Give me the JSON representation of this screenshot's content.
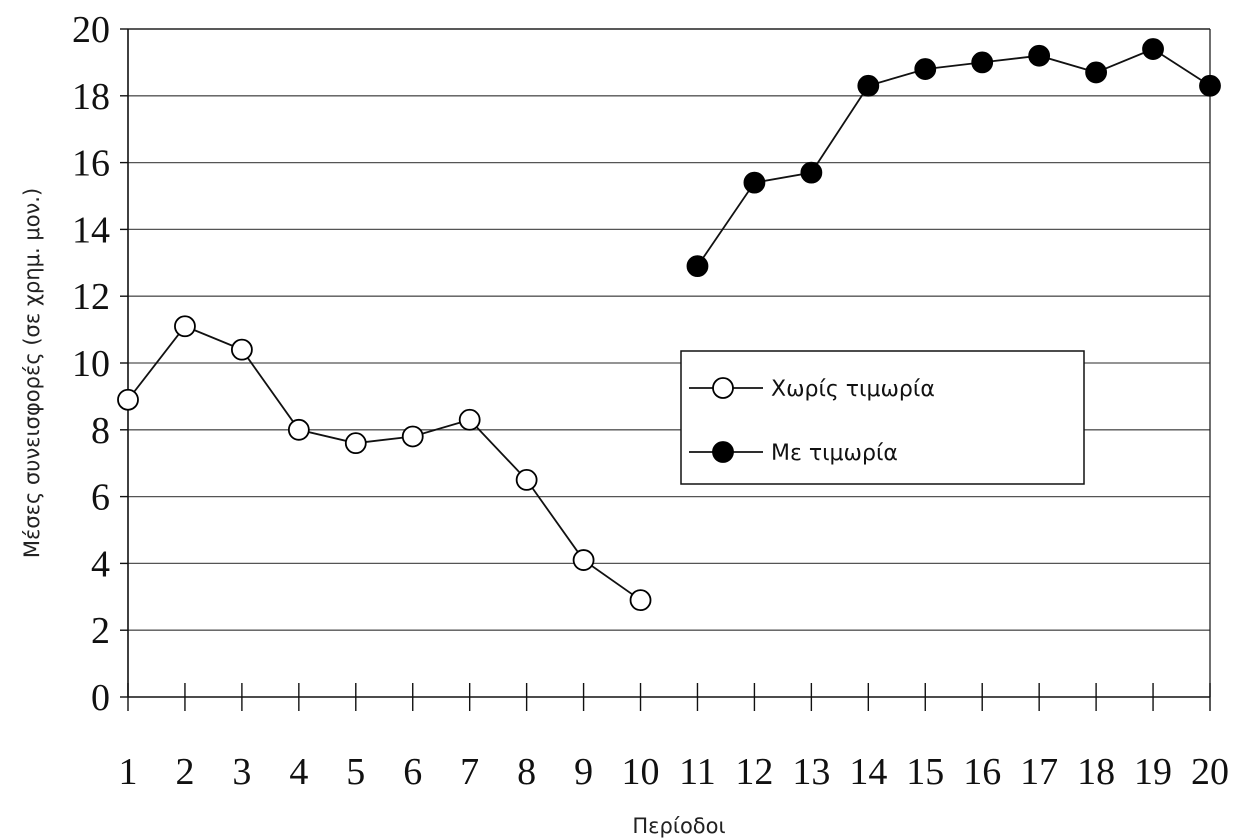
{
  "chart_data": {
    "type": "line",
    "title": "",
    "xlabel": "Περίοδοι",
    "ylabel": "Μέσες συνεισφορές (σε χρημ. μον.)",
    "x": [
      1,
      2,
      3,
      4,
      5,
      6,
      7,
      8,
      9,
      10,
      11,
      12,
      13,
      14,
      15,
      16,
      17,
      18,
      19,
      20
    ],
    "xlim": [
      1,
      20
    ],
    "ylim": [
      0,
      20
    ],
    "yticks": [
      0,
      2,
      4,
      6,
      8,
      10,
      12,
      14,
      16,
      18,
      20
    ],
    "grid": "horizontal",
    "legend_position": "center-right",
    "series": [
      {
        "name": "Χωρίς τιμωρία",
        "marker": "open-circle",
        "x": [
          1,
          2,
          3,
          4,
          5,
          6,
          7,
          8,
          9,
          10
        ],
        "values": [
          8.9,
          11.1,
          10.4,
          8.0,
          7.6,
          7.8,
          8.3,
          6.5,
          4.1,
          2.9
        ]
      },
      {
        "name": "Με τιμωρία",
        "marker": "filled-circle",
        "x": [
          11,
          12,
          13,
          14,
          15,
          16,
          17,
          18,
          19,
          20
        ],
        "values": [
          12.9,
          15.4,
          15.7,
          18.3,
          18.8,
          19.0,
          19.2,
          18.7,
          19.4,
          18.3
        ]
      }
    ]
  }
}
